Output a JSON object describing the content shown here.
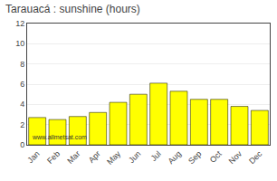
{
  "chart_data": {
    "type": "bar",
    "title": "Tarauacá : sunshine (hours)",
    "categories": [
      "Jan",
      "Feb",
      "Mar",
      "Apr",
      "May",
      "Jun",
      "Jul",
      "Aug",
      "Sep",
      "Oct",
      "Nov",
      "Dec"
    ],
    "values": [
      2.7,
      2.5,
      2.8,
      3.2,
      4.2,
      5.0,
      6.1,
      5.3,
      4.5,
      4.5,
      3.8,
      3.4
    ],
    "color": "#ffff00",
    "ylim": [
      0,
      12
    ],
    "yticks": [
      0,
      2,
      4,
      6,
      8,
      10,
      12
    ],
    "grid": true,
    "annotations": [
      "www.allmetsat.com"
    ]
  }
}
